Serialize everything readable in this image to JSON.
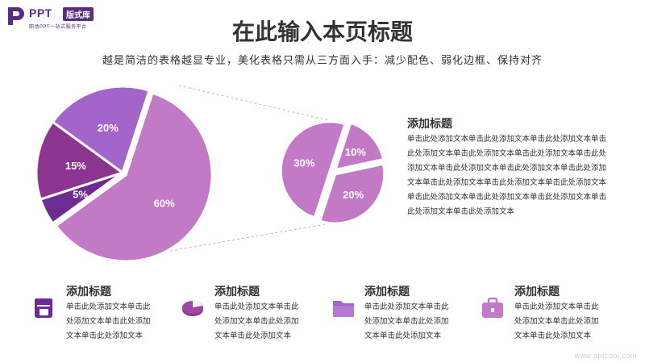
{
  "brand": {
    "name": "PPT",
    "badge": "版式库",
    "tagline": "职场PPT一站式服务平台"
  },
  "header": {
    "title": "在此输入本页标题",
    "subtitle": "越是简洁的表格越显专业，美化表格只需从三方面入手：减少配色、弱化边框、保持对齐"
  },
  "chart_data": [
    {
      "type": "pie",
      "title": "",
      "slices": [
        {
          "label": "60%",
          "value": 60,
          "color": "#c27ac7"
        },
        {
          "label": "5%",
          "value": 5,
          "color": "#6c2c91"
        },
        {
          "label": "15%",
          "value": 15,
          "color": "#8b3591"
        },
        {
          "label": "20%",
          "value": 20,
          "color": "#a365c9"
        }
      ]
    },
    {
      "type": "pie",
      "title": "",
      "slices": [
        {
          "label": "10%",
          "value": 10,
          "color": "#c27ac7"
        },
        {
          "label": "20%",
          "value": 20,
          "color": "#c27ac7"
        },
        {
          "label": "30%",
          "value": 30,
          "color": "#c27ac7"
        }
      ]
    }
  ],
  "side_block": {
    "title": "添加标题",
    "lines": [
      "单击此处添加文本单击此处添加文本单击此处添加文本单击",
      "此处添加文本单击此处添加文本单击此处添加文本单击此处",
      "添加文本单击此处添加文本单击此处添加文本单击此处添加",
      "文本单击此处添加文本单击此处添加文本单击此处添加文本",
      "单击此处添加文本单击此处添加文本单击此处添加文本单击",
      "此处添加文本单击此处添加文本"
    ]
  },
  "features": [
    {
      "title": "添加标题",
      "icon": "document-icon",
      "color": "#6c2c91",
      "lines": [
        "单击此处添加文本单击此",
        "处添加文本单击此处添加",
        "文本单击此处添加文本"
      ]
    },
    {
      "title": "添加标题",
      "icon": "pie-chart-icon",
      "color": "#8b3591",
      "lines": [
        "单击此处添加文本单击此",
        "处添加文本单击此处添加",
        "文本单击此处添加文本"
      ]
    },
    {
      "title": "添加标题",
      "icon": "folder-icon",
      "color": "#a365c9",
      "lines": [
        "单击此处添加文本单击此",
        "处添加文本单击此处添加",
        "文本单击此处添加文本"
      ]
    },
    {
      "title": "添加标题",
      "icon": "briefcase-icon",
      "color": "#c27ac7",
      "lines": [
        "单击此处添加文本单击此",
        "处添加文本单击此处添加",
        "文本单击此处添加文本"
      ]
    }
  ],
  "watermark": "www.pptcool.com"
}
